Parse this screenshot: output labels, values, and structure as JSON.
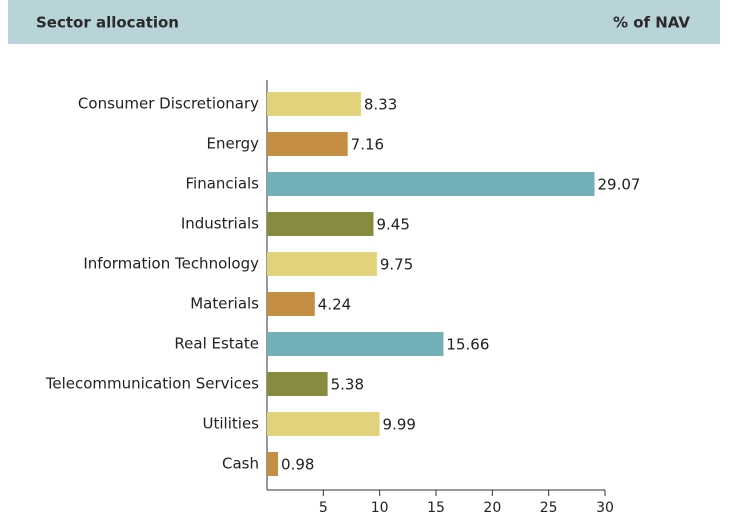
{
  "chart_data": {
    "type": "bar",
    "orientation": "horizontal",
    "title": "Sector allocation",
    "xlabel": "% of NAV",
    "categories": [
      "Consumer Discretionary",
      "Energy",
      "Financials",
      "Industrials",
      "Information Technology",
      "Materials",
      "Real Estate",
      "Telecommunication Services",
      "Utilities",
      "Cash"
    ],
    "values": [
      8.33,
      7.16,
      29.07,
      9.45,
      9.75,
      4.24,
      15.66,
      5.38,
      9.99,
      0.98
    ],
    "colors": [
      "#e2d27c",
      "#c48f42",
      "#72b0b8",
      "#878a3f",
      "#e2d27c",
      "#c48f42",
      "#72b0b8",
      "#878a3f",
      "#e2d27c",
      "#c48f42"
    ],
    "xlim": [
      0,
      30
    ],
    "xticks": [
      5,
      10,
      15,
      20,
      25,
      30
    ],
    "grid": false
  }
}
